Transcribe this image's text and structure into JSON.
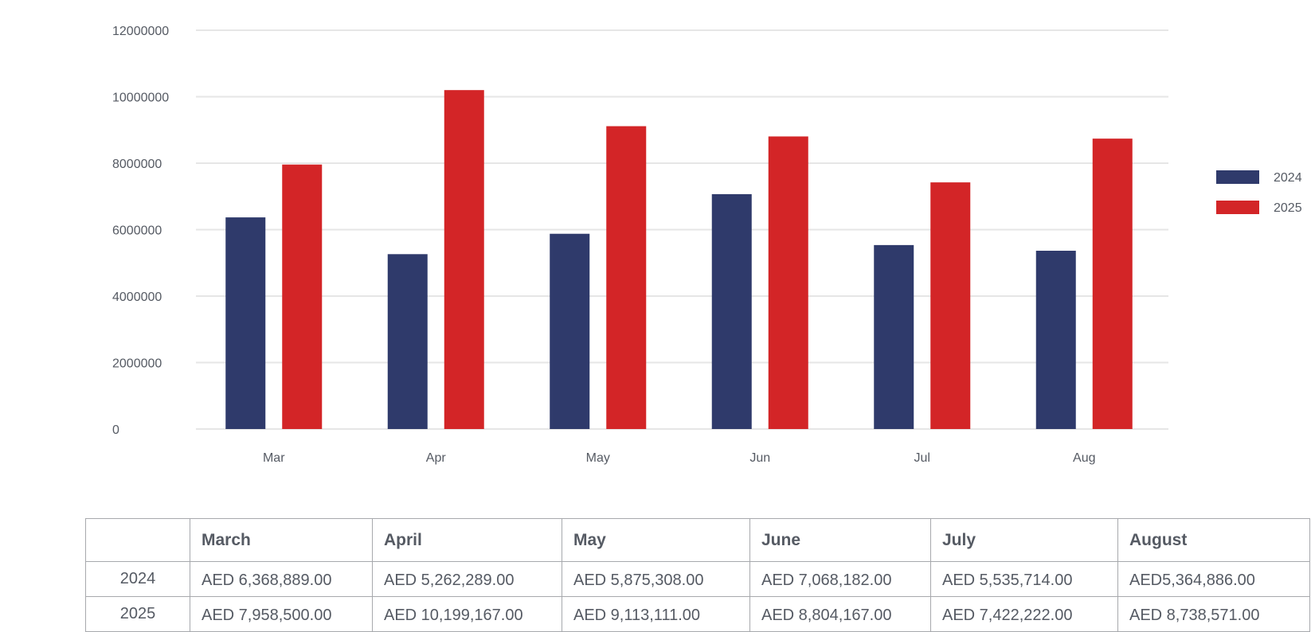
{
  "chart_data": {
    "type": "bar",
    "categories": [
      "Mar",
      "Apr",
      "May",
      "Jun",
      "Jul",
      "Aug"
    ],
    "series": [
      {
        "name": "2024",
        "color": "#2f3a6b",
        "values": [
          6368889,
          5262289,
          5875308,
          7068182,
          5535714,
          5364886
        ]
      },
      {
        "name": "2025",
        "color": "#d32527",
        "values": [
          7958500,
          10199167,
          9113111,
          8804167,
          7422222,
          8738571
        ]
      }
    ],
    "y_ticks": [
      "0",
      "2000000",
      "4000000",
      "6000000",
      "8000000",
      "10000000",
      "12000000"
    ],
    "ylim": [
      0,
      12000000
    ],
    "grid": true,
    "legend": "right",
    "title": "",
    "xlabel": "",
    "ylabel": ""
  },
  "table": {
    "corner": "",
    "headers": [
      "March",
      "April",
      "May",
      "June",
      "July",
      "August"
    ],
    "rows": [
      {
        "label": "2024",
        "cells": [
          "AED 6,368,889.00",
          "AED 5,262,289.00",
          "AED 5,875,308.00",
          "AED 7,068,182.00",
          "AED 5,535,714.00",
          "AED5,364,886.00"
        ]
      },
      {
        "label": "2025",
        "cells": [
          "AED 7,958,500.00",
          "AED 10,199,167.00",
          "AED 9,113,111.00",
          "AED 8,804,167.00",
          "AED 7,422,222.00",
          "AED 8,738,571.00"
        ]
      }
    ]
  }
}
